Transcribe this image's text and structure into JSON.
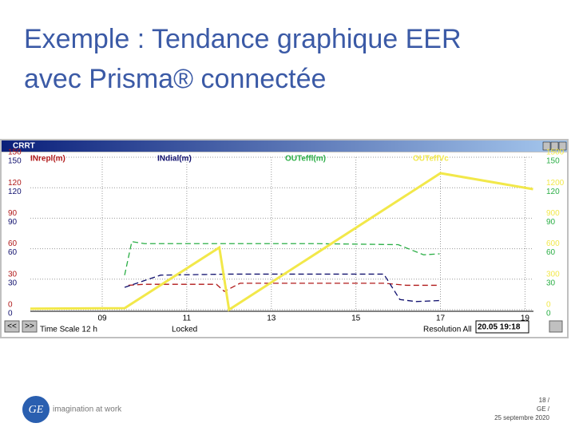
{
  "title": [
    "Exemple : Tendance graphique EER",
    "avec Prisma® connectée"
  ],
  "window": {
    "title": "CRRT",
    "time_scale": "Time Scale 12 h",
    "status": "Locked",
    "resolution": "Resolution All",
    "timestamp": "20.05 19:18",
    "back": "<<",
    "forward": ">>"
  },
  "chart_data": {
    "type": "line",
    "xlim": [
      7.3,
      19.2
    ],
    "xticks": [
      {
        "value": 9,
        "label": "09"
      },
      11,
      13,
      15,
      17,
      19
    ],
    "ylim": [
      0,
      150
    ],
    "yticks": [
      0,
      30,
      60,
      90,
      120,
      150
    ],
    "y2lim": [
      0,
      1500
    ],
    "y2ticks": [
      0,
      300,
      600,
      900,
      1200,
      1500
    ],
    "grid": true,
    "series": [
      {
        "name": "INrepl(m)",
        "color": "#b01818",
        "x": [
          9.62,
          10.0,
          11.7,
          11.89,
          12.26,
          15.66,
          16.2,
          16.98
        ],
        "values": [
          24,
          25,
          25,
          18,
          26,
          26,
          24,
          24
        ]
      },
      {
        "name": "INdial(m)",
        "color": "#10106e",
        "x": [
          9.53,
          10.38,
          12.0,
          15.66,
          16.04,
          16.42,
          16.98
        ],
        "values": [
          22,
          34,
          35,
          35,
          10,
          8,
          9
        ]
      },
      {
        "name": "OUTeffl(m)",
        "color": "#2aae45",
        "x": [
          9.53,
          9.7,
          10.0,
          12.0,
          14.0,
          16.0,
          16.6,
          16.98
        ],
        "values": [
          34,
          67,
          65,
          65,
          65,
          64,
          54,
          55
        ]
      },
      {
        "name": "OUTeffVc",
        "color": "#f2e84a",
        "axis": "y2",
        "x": [
          7.3,
          9.53,
          11.77,
          12.0,
          17.0,
          19.19
        ],
        "values": [
          10,
          15,
          612,
          0,
          1343,
          1186
        ]
      }
    ]
  },
  "footer": {
    "brand": "imagination at work",
    "page": "18 /",
    "company": "GE /",
    "date": "25 septembre 2020"
  }
}
